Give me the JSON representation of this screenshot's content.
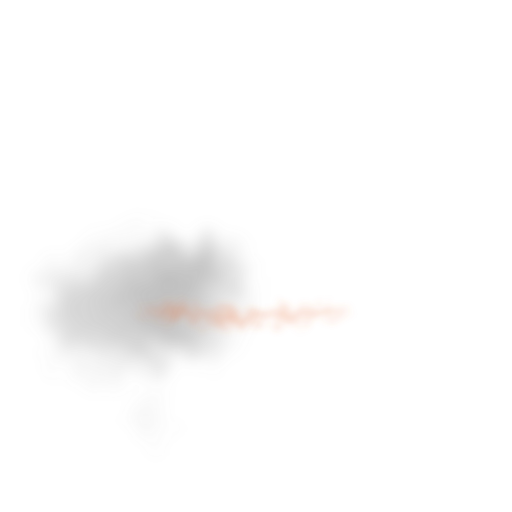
{
  "image": {
    "background_color": "#ffffff",
    "smoke_color": "#8a8a8a",
    "ember_color": "#e8703a"
  }
}
